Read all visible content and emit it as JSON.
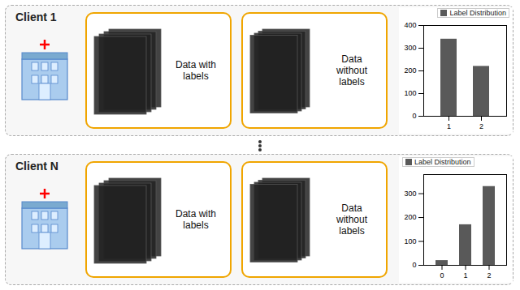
{
  "chart_data": [
    {
      "type": "bar",
      "annotations": [
        "Client 1",
        "Data with\nlabels",
        "Data\nwithout\nlabels"
      ],
      "categories": [
        "1",
        "2"
      ],
      "series": [
        {
          "name": "Label Distribution",
          "color": "#595959",
          "values": [
            340,
            220
          ]
        }
      ],
      "ylim": [
        0,
        400
      ],
      "yticks": [
        0,
        100,
        200,
        300,
        400
      ],
      "legend": "upper right",
      "grid": false
    },
    {
      "type": "bar",
      "annotations": [
        "Client N",
        "Data with\nlabels",
        "Data\nwithout\nlabels"
      ],
      "categories": [
        "0",
        "1",
        "2"
      ],
      "series": [
        {
          "name": "Label Distribution",
          "color": "#595959",
          "values": [
            20,
            170,
            330
          ]
        }
      ],
      "ylim": [
        0,
        380
      ],
      "yticks": [
        0,
        100,
        200,
        300
      ],
      "legend": "upper left",
      "grid": false
    }
  ]
}
